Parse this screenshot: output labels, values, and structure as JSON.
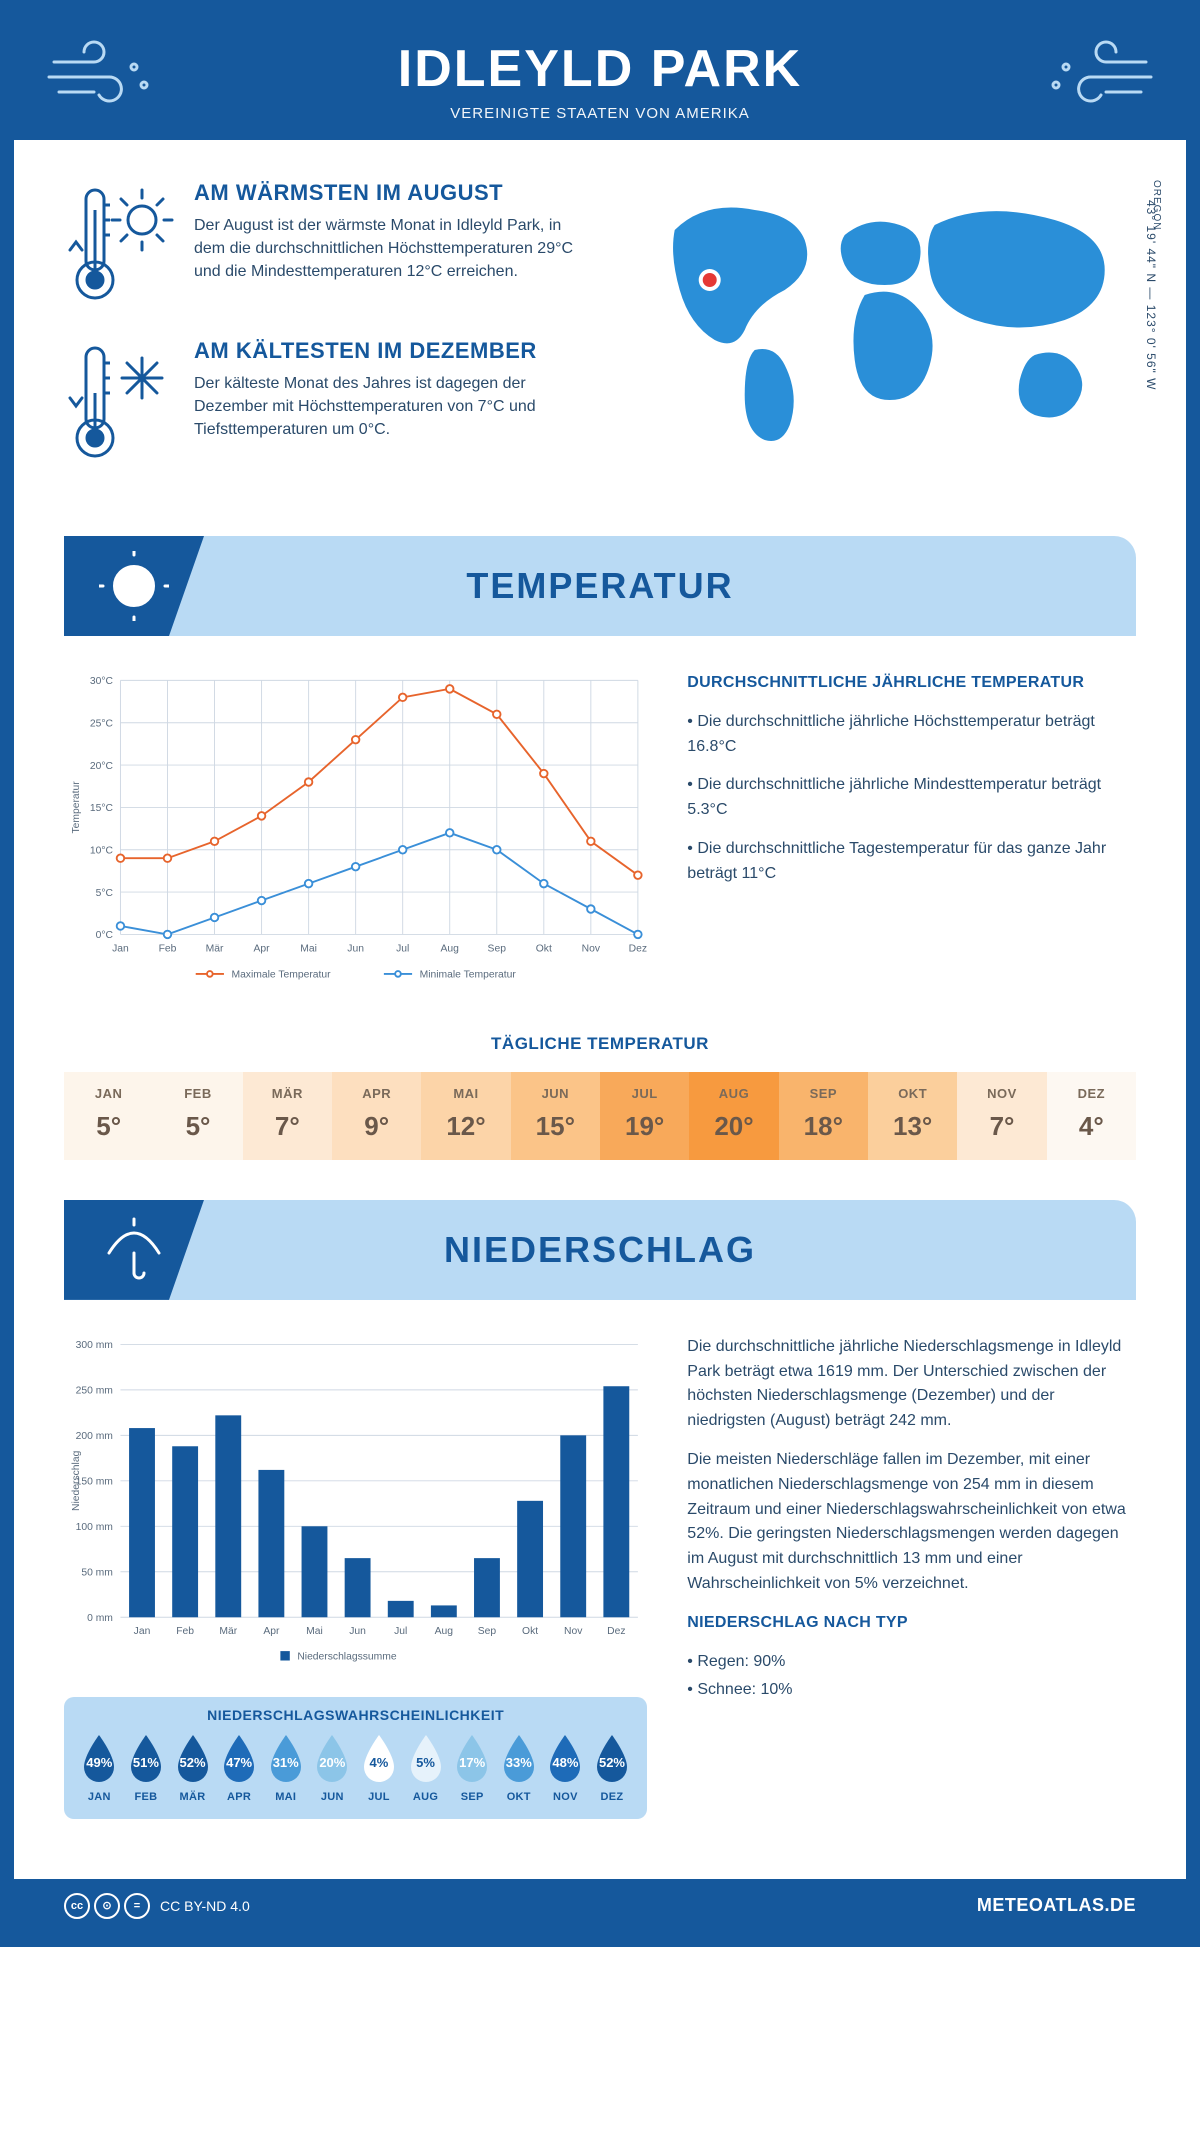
{
  "header": {
    "title": "IDLEYLD PARK",
    "subtitle": "VEREINIGTE STAATEN VON AMERIKA"
  },
  "coords": "43° 19' 44\" N — 123° 0' 56\" W",
  "region": "OREGON",
  "map": {
    "land_color": "#2a8fd8",
    "marker_color": "#e53935",
    "marker_ring": "#ffffff"
  },
  "facts": {
    "warm": {
      "title": "AM WÄRMSTEN IM AUGUST",
      "text": "Der August ist der wärmste Monat in Idleyld Park, in dem die durchschnittlichen Höchsttemperaturen 29°C und die Mindesttemperaturen 12°C erreichen."
    },
    "cold": {
      "title": "AM KÄLTESTEN IM DEZEMBER",
      "text": "Der kälteste Monat des Jahres ist dagegen der Dezember mit Höchsttemperaturen von 7°C und Tiefsttemperaturen um 0°C."
    }
  },
  "colors": {
    "brand": "#15589c",
    "band": "#b9daf4",
    "max_line": "#e7642c",
    "min_line": "#3a8fd8",
    "bar": "#15589c",
    "grid": "#cfd8e3",
    "axis_text": "#5a6b7d"
  },
  "temperature": {
    "section_title": "TEMPERATUR",
    "side_title": "DURCHSCHNITTLICHE JÄHRLICHE TEMPERATUR",
    "side_points": [
      "• Die durchschnittliche jährliche Höchsttemperatur beträgt 16.8°C",
      "• Die durchschnittliche jährliche Mindesttemperatur beträgt 5.3°C",
      "• Die durchschnittliche Tagestemperatur für das ganze Jahr beträgt 11°C"
    ],
    "chart": {
      "type": "line",
      "months": [
        "Jan",
        "Feb",
        "Mär",
        "Apr",
        "Mai",
        "Jun",
        "Jul",
        "Aug",
        "Sep",
        "Okt",
        "Nov",
        "Dez"
      ],
      "max_values": [
        9,
        9,
        11,
        14,
        18,
        23,
        28,
        29,
        26,
        19,
        11,
        7
      ],
      "min_values": [
        1,
        0,
        2,
        4,
        6,
        8,
        10,
        12,
        10,
        6,
        3,
        0
      ],
      "ylim": [
        0,
        30
      ],
      "ytick_step": 5,
      "y_label": "Temperatur",
      "y_unit": "°C",
      "legend_max": "Maximale Temperatur",
      "legend_min": "Minimale Temperatur",
      "line_width": 2,
      "marker": "circle",
      "marker_size": 4
    },
    "daily": {
      "title": "TÄGLICHE TEMPERATUR",
      "months": [
        "JAN",
        "FEB",
        "MÄR",
        "APR",
        "MAI",
        "JUN",
        "JUL",
        "AUG",
        "SEP",
        "OKT",
        "NOV",
        "DEZ"
      ],
      "values": [
        "5°",
        "5°",
        "7°",
        "9°",
        "12°",
        "15°",
        "19°",
        "20°",
        "18°",
        "13°",
        "7°",
        "4°"
      ],
      "cell_colors": [
        "#fdf5eb",
        "#fdf5eb",
        "#fde9d4",
        "#fddfbf",
        "#fcd4a8",
        "#fbc488",
        "#f8a95a",
        "#f79a3f",
        "#f9b46c",
        "#fbcf9c",
        "#fde9d4",
        "#fdf8f2"
      ]
    }
  },
  "precip": {
    "section_title": "NIEDERSCHLAG",
    "side_paras": [
      "Die durchschnittliche jährliche Niederschlagsmenge in Idleyld Park beträgt etwa 1619 mm. Der Unterschied zwischen der höchsten Niederschlagsmenge (Dezember) und der niedrigsten (August) beträgt 242 mm.",
      "Die meisten Niederschläge fallen im Dezember, mit einer monatlichen Niederschlagsmenge von 254 mm in diesem Zeitraum und einer Niederschlagswahrscheinlichkeit von etwa 52%. Die geringsten Niederschlagsmengen werden dagegen im August mit durchschnittlich 13 mm und einer Wahrscheinlichkeit von 5% verzeichnet."
    ],
    "type_title": "NIEDERSCHLAG NACH TYP",
    "type_points": [
      "• Regen: 90%",
      "• Schnee: 10%"
    ],
    "chart": {
      "type": "bar",
      "months": [
        "Jan",
        "Feb",
        "Mär",
        "Apr",
        "Mai",
        "Jun",
        "Jul",
        "Aug",
        "Sep",
        "Okt",
        "Nov",
        "Dez"
      ],
      "values": [
        208,
        188,
        222,
        162,
        100,
        65,
        18,
        13,
        65,
        128,
        200,
        254
      ],
      "ylim": [
        0,
        300
      ],
      "ytick_step": 50,
      "y_label": "Niederschlag",
      "y_unit": "mm",
      "legend": "Niederschlagssumme",
      "bar_width": 0.6
    },
    "prob": {
      "title": "NIEDERSCHLAGSWAHRSCHEINLICHKEIT",
      "months": [
        "JAN",
        "FEB",
        "MÄR",
        "APR",
        "MAI",
        "JUN",
        "JUL",
        "AUG",
        "SEP",
        "OKT",
        "NOV",
        "DEZ"
      ],
      "values": [
        "49%",
        "51%",
        "52%",
        "47%",
        "31%",
        "20%",
        "4%",
        "5%",
        "17%",
        "33%",
        "48%",
        "52%"
      ],
      "drop_colors": [
        "#15589c",
        "#15589c",
        "#15589c",
        "#1e6bb8",
        "#4a9bd8",
        "#8cc5e8",
        "#ffffff",
        "#e6f2fb",
        "#8cc5e8",
        "#4a9bd8",
        "#1e6bb8",
        "#15589c"
      ],
      "text_colors": [
        "#fff",
        "#fff",
        "#fff",
        "#fff",
        "#fff",
        "#fff",
        "#15589c",
        "#15589c",
        "#fff",
        "#fff",
        "#fff",
        "#fff"
      ]
    }
  },
  "footer": {
    "license": "CC BY-ND 4.0",
    "site": "METEOATLAS.DE"
  }
}
